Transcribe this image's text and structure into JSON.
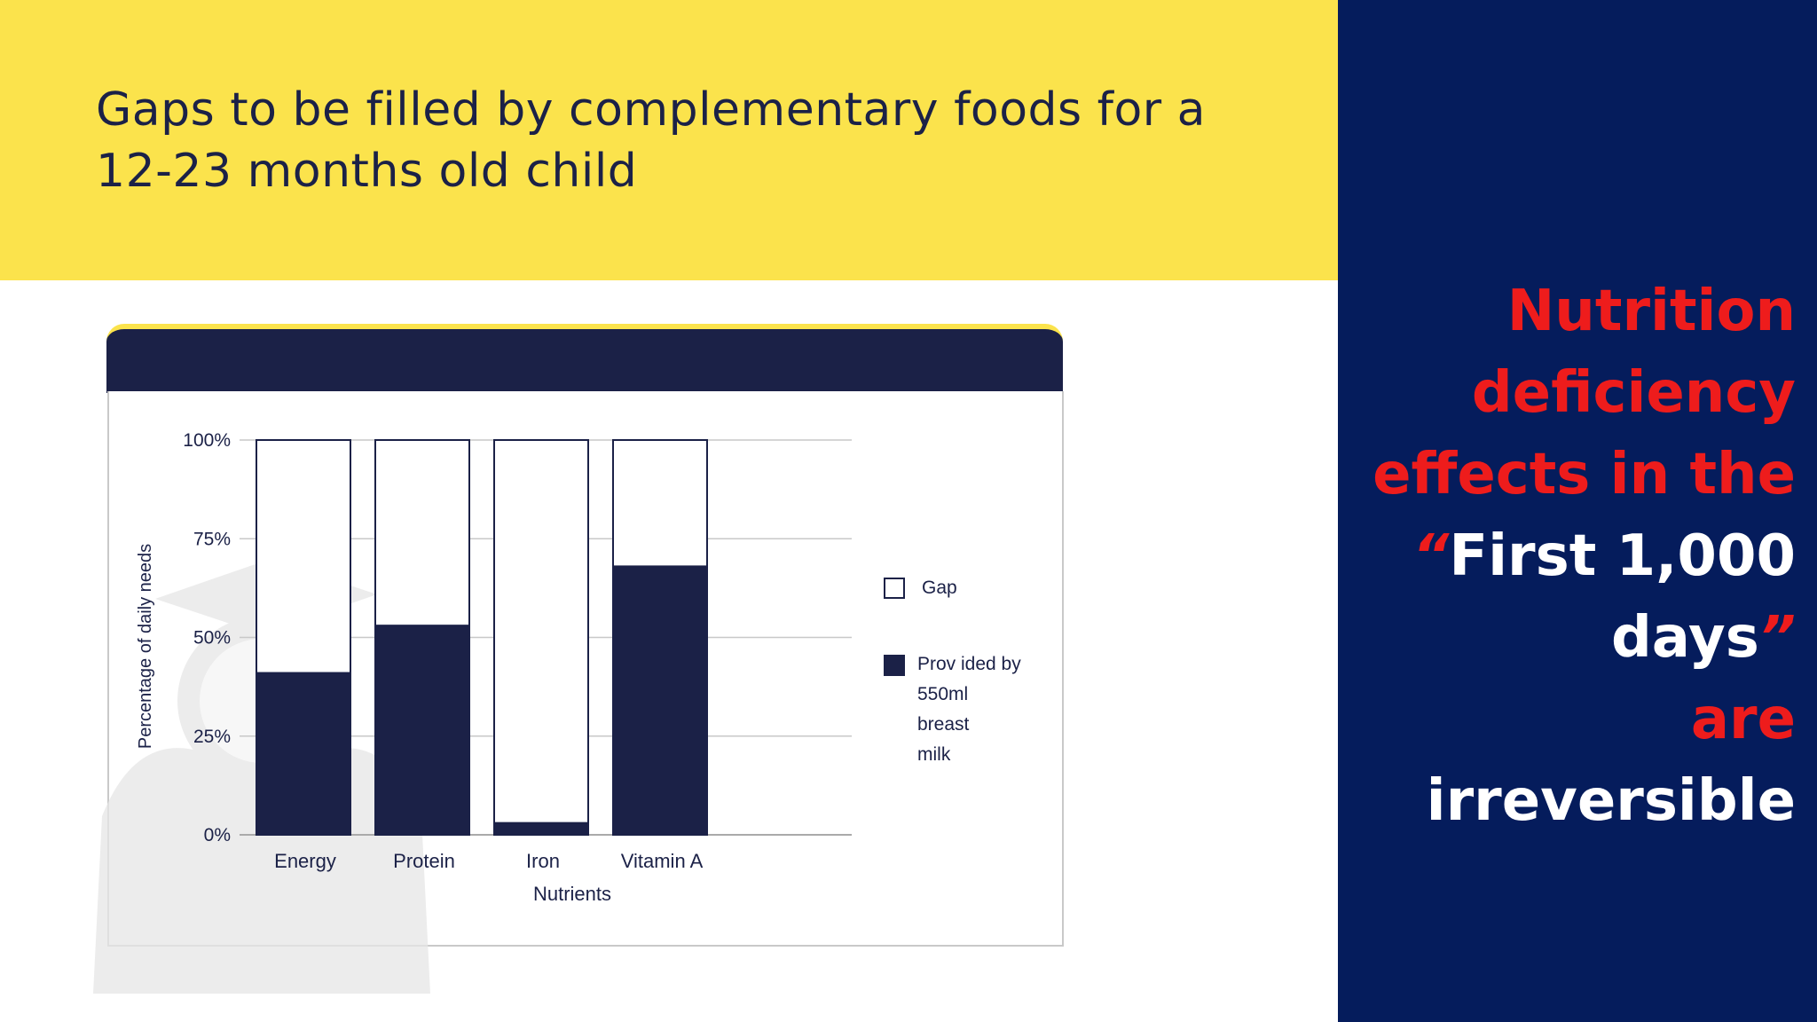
{
  "slide": {
    "title_line1": "Gaps to be filled by complementary foods for a",
    "title_line2": "12-23 months old child"
  },
  "callout": {
    "line1": "Nutrition",
    "line2": "deficiency",
    "line3": "effects in the",
    "line4_quote_open": "“",
    "line4_text": "First 1,000",
    "line5_text": "days",
    "line5_quote_close": "”",
    "line6": "are",
    "line7": "irreversible"
  },
  "colors": {
    "header_yellow": "#fbe34c",
    "panel_navy": "#051c5c",
    "bar_navy": "#1b2147",
    "callout_red": "#ee1c1c"
  },
  "chart_data": {
    "type": "bar",
    "stacked": true,
    "categories": [
      "Energy",
      "Protein",
      "Iron",
      "Vitamin A"
    ],
    "series": [
      {
        "name": "Provided by 550ml breast milk",
        "values": [
          41,
          53,
          3,
          68
        ],
        "color": "#1b2147"
      },
      {
        "name": "Gap",
        "values": [
          59,
          47,
          97,
          32
        ],
        "color": "#ffffff"
      }
    ],
    "yticks": [
      "0%",
      "25%",
      "50%",
      "75%",
      "100%"
    ],
    "ylim": [
      0,
      100
    ],
    "xlabel": "Nutrients",
    "ylabel": "Percentage of  daily  needs",
    "grid": true,
    "legend": {
      "placement": "right",
      "gap_label": "Gap",
      "provided_lines": [
        "Prov ided by",
        "550ml",
        "breast",
        "milk"
      ]
    }
  }
}
